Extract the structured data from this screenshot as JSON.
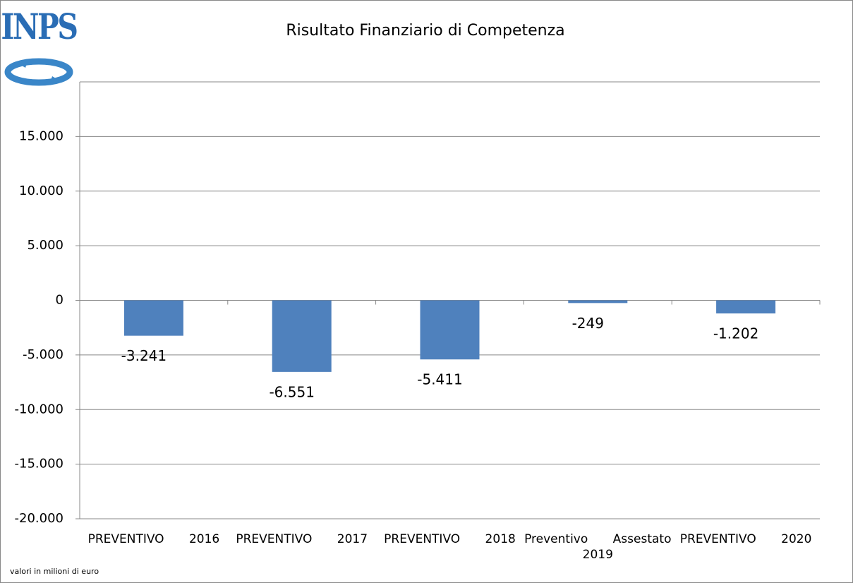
{
  "logo": "INPS",
  "chart_data": {
    "type": "bar",
    "title": "Risultato Finanziario di Competenza",
    "categories": [
      "PREVENTIVO 2016",
      "PREVENTIVO 2017",
      "PREVENTIVO 2018",
      "Preventivo Assestato 2019",
      "PREVENTIVO 2020"
    ],
    "values": [
      -3241,
      -6551,
      -5411,
      -249,
      -1202
    ],
    "value_labels": [
      "-3.241",
      "-6.551",
      "-5.411",
      "-249",
      "-1.202"
    ],
    "color": "#4f81bd",
    "ylim": [
      -20000,
      20000
    ],
    "yticks": [
      {
        "value": -20000,
        "label": "-20.000"
      },
      {
        "value": -15000,
        "label": "-15.000"
      },
      {
        "value": -10000,
        "label": "-10.000"
      },
      {
        "value": -5000,
        "label": "-5.000"
      },
      0,
      {
        "value": 5000,
        "label": "5.000"
      },
      {
        "value": 10000,
        "label": "10.000"
      },
      {
        "value": 15000,
        "label": "15.000"
      }
    ],
    "grid": true,
    "note": "valori in milioni di euro"
  }
}
